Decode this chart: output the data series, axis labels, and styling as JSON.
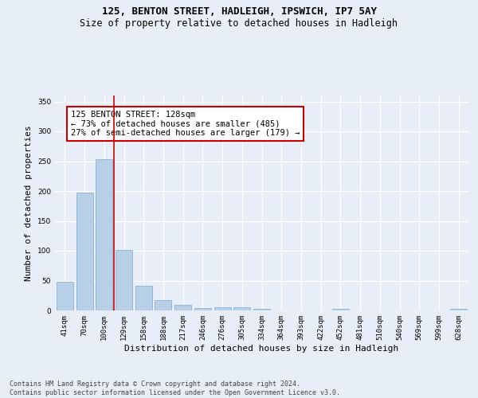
{
  "title": "125, BENTON STREET, HADLEIGH, IPSWICH, IP7 5AY",
  "subtitle": "Size of property relative to detached houses in Hadleigh",
  "xlabel": "Distribution of detached houses by size in Hadleigh",
  "ylabel": "Number of detached properties",
  "categories": [
    "41sqm",
    "70sqm",
    "100sqm",
    "129sqm",
    "158sqm",
    "188sqm",
    "217sqm",
    "246sqm",
    "276sqm",
    "305sqm",
    "334sqm",
    "364sqm",
    "393sqm",
    "422sqm",
    "452sqm",
    "481sqm",
    "510sqm",
    "540sqm",
    "569sqm",
    "599sqm",
    "628sqm"
  ],
  "values": [
    48,
    197,
    253,
    102,
    41,
    17,
    10,
    4,
    5,
    5,
    3,
    0,
    0,
    0,
    3,
    0,
    0,
    0,
    0,
    0,
    3
  ],
  "bar_color": "#b8cfe8",
  "bar_edge_color": "#7aadd4",
  "vline_color": "#cc0000",
  "annotation_text": "125 BENTON STREET: 128sqm\n← 73% of detached houses are smaller (485)\n27% of semi-detached houses are larger (179) →",
  "annotation_box_color": "#ffffff",
  "annotation_box_edge": "#cc0000",
  "ylim": [
    0,
    360
  ],
  "yticks": [
    0,
    50,
    100,
    150,
    200,
    250,
    300,
    350
  ],
  "footer": "Contains HM Land Registry data © Crown copyright and database right 2024.\nContains public sector information licensed under the Open Government Licence v3.0.",
  "background_color": "#e8eef8",
  "plot_bg_color": "#e8eef8",
  "title_fontsize": 9,
  "subtitle_fontsize": 8.5,
  "xlabel_fontsize": 8,
  "ylabel_fontsize": 8,
  "tick_fontsize": 6.5,
  "footer_fontsize": 6,
  "annot_fontsize": 7.5
}
